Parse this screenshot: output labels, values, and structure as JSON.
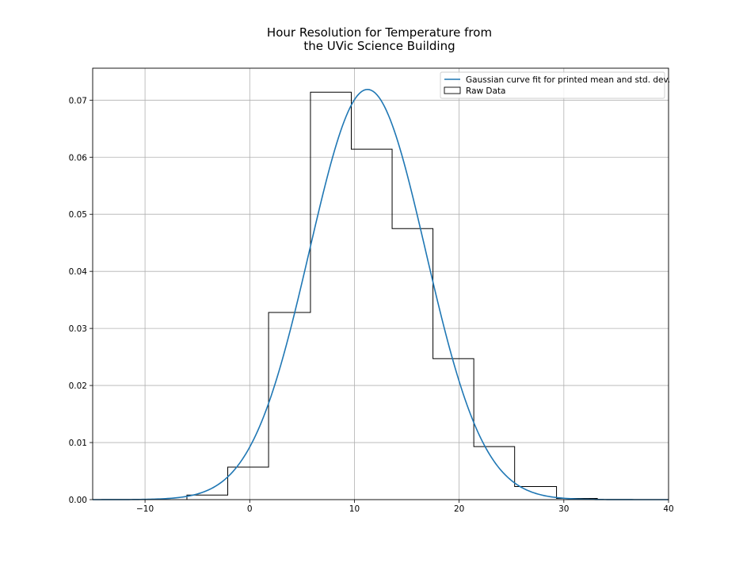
{
  "chart_data": {
    "type": "histogram",
    "title_lines": [
      "Hour Resolution for Temperature from",
      "the UVic Science Building"
    ],
    "xlabel": "",
    "ylabel": "",
    "xlim": [
      -15,
      40
    ],
    "ylim": [
      0,
      0.0756
    ],
    "grid": true,
    "xticks": [
      -10,
      0,
      10,
      20,
      30,
      40
    ],
    "xtick_labels": [
      "−10",
      "0",
      "10",
      "20",
      "30",
      "40"
    ],
    "yticks": [
      0.0,
      0.01,
      0.02,
      0.03,
      0.04,
      0.05,
      0.06,
      0.07
    ],
    "ytick_labels": [
      "0.00",
      "0.01",
      "0.02",
      "0.03",
      "0.04",
      "0.05",
      "0.06",
      "0.07"
    ],
    "legend_position": "top-right",
    "series": [
      {
        "name": "Gaussian curve fit for printed mean and std. dev.",
        "kind": "line",
        "color": "#1f77b4",
        "mean": 11.25,
        "std": 5.55
      },
      {
        "name": "Raw Data",
        "kind": "step-histogram",
        "color": "#000000",
        "bin_edges": [
          -6.0,
          -2.1,
          1.8,
          5.8,
          9.7,
          13.6,
          17.5,
          21.4,
          25.3,
          29.3,
          33.2
        ],
        "densities": [
          0.0008,
          0.0057,
          0.0328,
          0.0714,
          0.0614,
          0.0475,
          0.0247,
          0.0093,
          0.0023,
          0.0002
        ]
      }
    ]
  }
}
